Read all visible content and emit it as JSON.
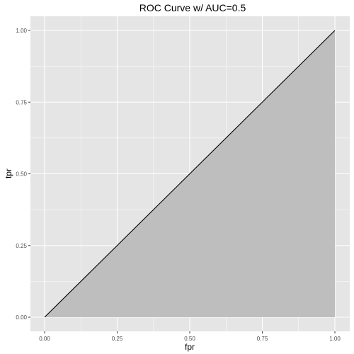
{
  "chart_data": {
    "type": "area",
    "title": "ROC Curve w/ AUC=0.5",
    "xlabel": "fpr",
    "ylabel": "tpr",
    "xlim": [
      0,
      1
    ],
    "ylim": [
      0,
      1
    ],
    "x_ticks": [
      0,
      0.25,
      0.5,
      0.75,
      1
    ],
    "y_ticks": [
      0,
      0.25,
      0.5,
      0.75,
      1
    ],
    "x_tick_labels": [
      "0.00",
      "0.25",
      "0.50",
      "0.75",
      "1.00"
    ],
    "y_tick_labels": [
      "0.00",
      "0.25",
      "0.50",
      "0.75",
      "1.00"
    ],
    "grid": true,
    "series": [
      {
        "x": [
          0,
          1
        ],
        "y": [
          0,
          1
        ]
      }
    ],
    "colors": {
      "panel": "#e5e5e5",
      "grid": "#ffffff",
      "area": "#bebebe",
      "line": "#000000",
      "tick": "#333333"
    }
  }
}
